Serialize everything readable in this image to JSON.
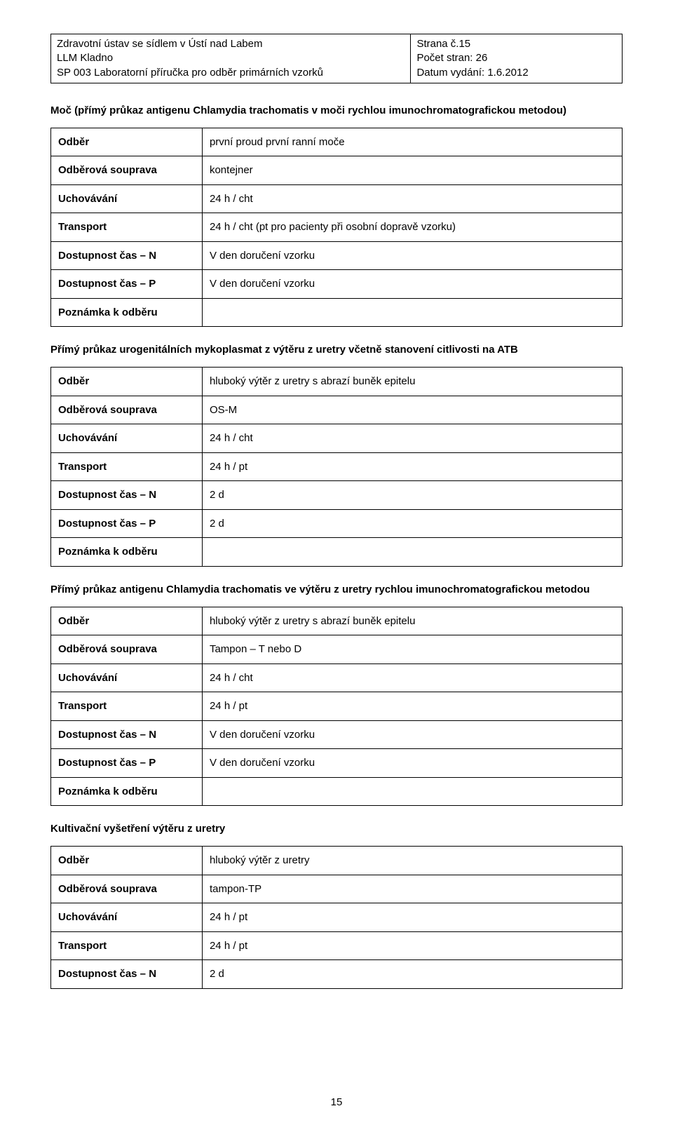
{
  "header": {
    "left_line1": "Zdravotní ústav se sídlem v Ústí nad Labem",
    "left_line2": "LLM Kladno",
    "left_line3": "SP 003 Laboratorní příručka pro odběr primárních vzorků",
    "right_line1": "Strana č.15",
    "right_line2": "Počet stran: 26",
    "right_line3": "Datum vydání: 1.6.2012"
  },
  "labels": {
    "odber": "Odběr",
    "odberova_souprava": "Odběrová souprava",
    "uchovavani": "Uchovávání",
    "transport": "Transport",
    "dostupnost_n": "Dostupnost čas – N",
    "dostupnost_p": "Dostupnost čas – P",
    "poznamka": "Poznámka k odběru"
  },
  "sections": [
    {
      "title": "Moč (přímý průkaz antigenu Chlamydia trachomatis v moči rychlou imunochromatografickou metodou)",
      "rows": {
        "odber": "první proud první ranní moče",
        "souprava": "kontejner",
        "uchovavani": "24 h / cht",
        "transport": "24 h / cht (pt pro pacienty při osobní dopravě vzorku)",
        "dost_n": "V den doručení vzorku",
        "dost_p": "V den doručení vzorku",
        "poznamka": ""
      }
    },
    {
      "title": "Přímý průkaz urogenitálních mykoplasmat z výtěru z uretry včetně stanovení citlivosti na ATB",
      "rows": {
        "odber": "hluboký výtěr z uretry s abrazí buněk epitelu",
        "souprava": "OS-M",
        "uchovavani": "24 h / cht",
        "transport": "24 h / pt",
        "dost_n": "2 d",
        "dost_p": "2 d",
        "poznamka": ""
      }
    },
    {
      "title": "Přímý průkaz antigenu Chlamydia trachomatis ve výtěru z uretry rychlou imunochromatografickou metodou",
      "rows": {
        "odber": "hluboký výtěr z uretry s abrazí buněk epitelu",
        "souprava": "Tampon – T nebo D",
        "uchovavani": "24 h / cht",
        "transport": "24 h / pt",
        "dost_n": "V den doručení vzorku",
        "dost_p": "V den doručení vzorku",
        "poznamka": ""
      }
    },
    {
      "title": "Kultivační vyšetření výtěru z uretry",
      "rows": {
        "odber": "hluboký výtěr z uretry",
        "souprava": "tampon-TP",
        "uchovavani": "24 h / pt",
        "transport": "24 h / pt",
        "dost_n": "2 d"
      }
    }
  ],
  "page_number": "15"
}
